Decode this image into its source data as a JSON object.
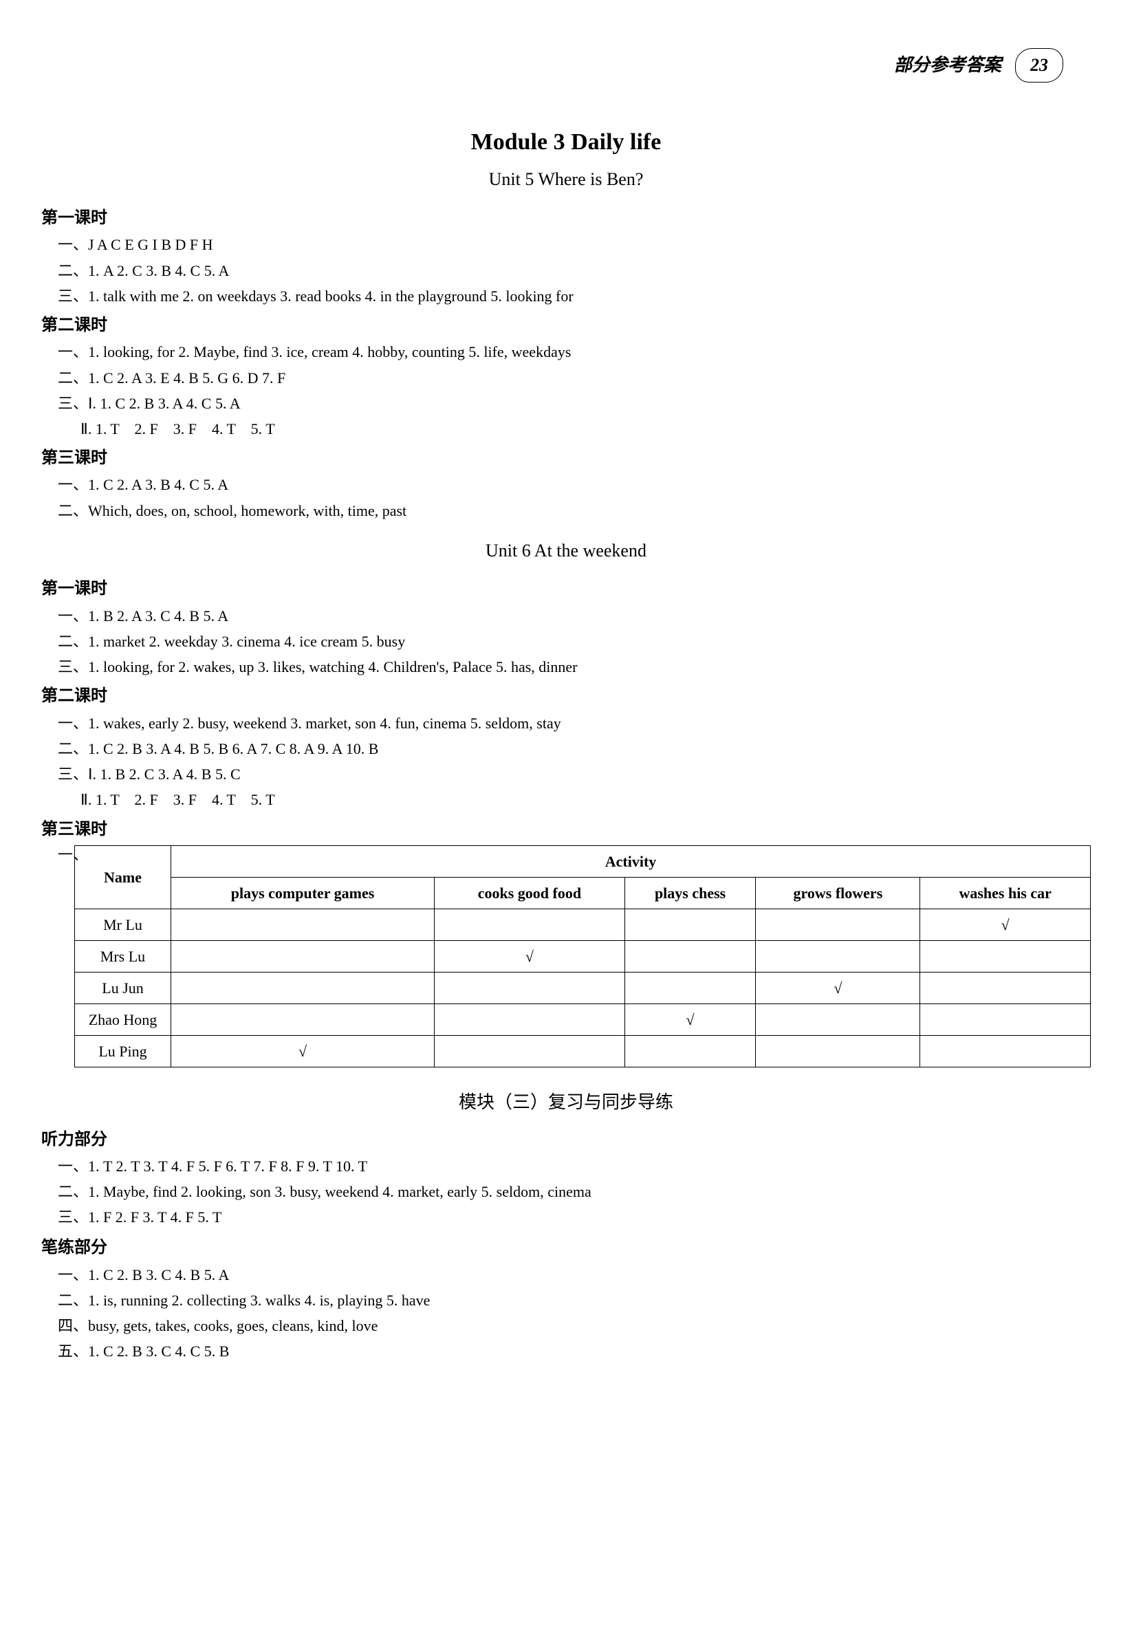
{
  "header": {
    "title": "部分参考答案",
    "page_number": "23"
  },
  "module": {
    "title": "Module 3   Daily life",
    "unit5_title": "Unit 5   Where is Ben?",
    "unit6_title": "Unit 6   At the weekend",
    "review_title": "模块（三）复习与同步导练"
  },
  "unit5": {
    "lesson1": {
      "header": "第一课时",
      "line1": "一、J A C E G      I B D F H",
      "line2": "二、1. A    2. C    3. B    4. C    5. A",
      "line3": "三、1. talk with me   2. on weekdays   3. read books   4. in the playground   5. looking for"
    },
    "lesson2": {
      "header": "第二课时",
      "line1": "一、1. looking, for   2. Maybe, find   3. ice, cream   4. hobby, counting   5. life, weekdays",
      "line2": "二、1. C    2. A    3. E    4. B    5. G    6. D    7. F",
      "line3": "三、Ⅰ. 1. C    2. B    3. A    4. C    5. A",
      "line4": "      Ⅱ. 1. T    2. F    3. F    4. T    5. T"
    },
    "lesson3": {
      "header": "第三课时",
      "line1": "一、1. C    2. A    3. B    4. C    5. A",
      "line2": "二、Which, does, on, school, homework, with, time, past"
    }
  },
  "unit6": {
    "lesson1": {
      "header": "第一课时",
      "line1": "一、1. B    2. A    3. C    4. B    5. A",
      "line2": "二、1. market   2. weekday   3. cinema   4. ice cream   5. busy",
      "line3": "三、1. looking, for   2. wakes, up   3. likes, watching   4. Children's, Palace   5. has, dinner"
    },
    "lesson2": {
      "header": "第二课时",
      "line1": "一、1. wakes, early   2. busy, weekend   3. market, son   4. fun, cinema   5. seldom, stay",
      "line2": "二、1. C    2. B    3. A    4. B    5. B    6. A    7. C    8. A    9. A    10. B",
      "line3": "三、Ⅰ. 1. B    2. C    3. A    4. B    5. C",
      "line4": "      Ⅱ. 1. T    2. F    3. F    4. T    5. T"
    },
    "lesson3": {
      "header": "第三课时",
      "prefix": "一、"
    }
  },
  "table": {
    "name_header": "Name",
    "activity_header": "Activity",
    "columns": [
      "plays computer games",
      "cooks good food",
      "plays chess",
      "grows flowers",
      "washes his car"
    ],
    "rows": [
      {
        "name": "Mr Lu",
        "checks": [
          "",
          "",
          "",
          "",
          "√"
        ]
      },
      {
        "name": "Mrs Lu",
        "checks": [
          "",
          "√",
          "",
          "",
          ""
        ]
      },
      {
        "name": "Lu Jun",
        "checks": [
          "",
          "",
          "",
          "√",
          ""
        ]
      },
      {
        "name": "Zhao Hong",
        "checks": [
          "",
          "",
          "√",
          "",
          ""
        ]
      },
      {
        "name": "Lu Ping",
        "checks": [
          "√",
          "",
          "",
          "",
          ""
        ]
      }
    ]
  },
  "review": {
    "listening_header": "听力部分",
    "l1": "一、1. T    2. T    3. T    4. F    5. F    6. T    7. F    8. F    9. T    10. T",
    "l2": "二、1. Maybe, find   2. looking, son   3. busy, weekend   4. market, early   5. seldom, cinema",
    "l3": "三、1. F    2. F    3. T    4. F    5. T",
    "writing_header": "笔练部分",
    "w1": "一、1. C    2. B    3. C    4. B    5. A",
    "w2": "二、1. is, running   2. collecting   3. walks   4. is, playing   5. have",
    "w3": "四、busy, gets, takes, cooks, goes, cleans, kind, love",
    "w4": "五、1. C    2. B    3. C    4. C    5. B"
  }
}
